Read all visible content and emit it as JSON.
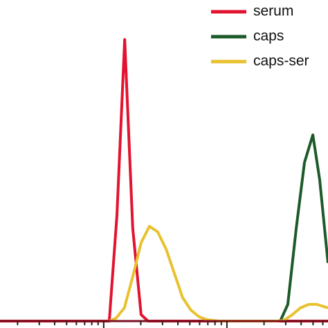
{
  "chart_data": {
    "type": "line",
    "xscale": "log",
    "xlim": [
      1.44,
      661
    ],
    "ylim": [
      0,
      100
    ],
    "xticks": [
      2,
      3,
      4,
      5,
      6,
      7,
      8,
      9,
      10,
      20,
      30,
      40,
      50,
      60,
      70,
      80,
      90,
      100,
      200,
      300,
      400,
      500,
      600
    ],
    "legend": "upper right",
    "series": [
      {
        "name": "serum",
        "color": "#e3132f",
        "x": [
          1.44,
          11.1,
          12.8,
          14.8,
          17.2,
          20.1,
          22.9,
          661
        ],
        "values": [
          0,
          0,
          33,
          87.7,
          29,
          2,
          0,
          0
        ]
      },
      {
        "name": "caps",
        "color": "#1d5a2a",
        "x": [
          271,
          312,
          365,
          426,
          498,
          566,
          661
        ],
        "values": [
          0,
          5.2,
          28.9,
          49.4,
          58,
          44,
          18.1
        ]
      },
      {
        "name": "caps-ser",
        "color": "#e8c22e",
        "x": [
          11.1,
          12.6,
          14.7,
          17.2,
          20.1,
          23.5,
          27.4,
          32.1,
          37.4,
          43.7,
          51.0,
          59.6,
          69.6,
          85.7,
          254,
          289,
          337,
          394,
          461,
          537,
          661
        ],
        "values": [
          0,
          0.9,
          4.1,
          13.8,
          24.4,
          29.5,
          27.8,
          22.4,
          14.9,
          7.3,
          3.4,
          1.3,
          0.4,
          0,
          0,
          0.2,
          1.9,
          4.1,
          5.2,
          5.2,
          4.1
        ]
      }
    ]
  }
}
